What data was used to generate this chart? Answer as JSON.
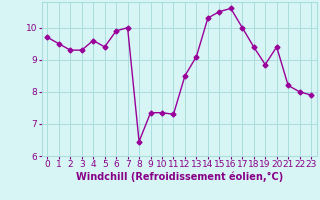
{
  "x": [
    0,
    1,
    2,
    3,
    4,
    5,
    6,
    7,
    8,
    9,
    10,
    11,
    12,
    13,
    14,
    15,
    16,
    17,
    18,
    19,
    20,
    21,
    22,
    23
  ],
  "y": [
    9.7,
    9.5,
    9.3,
    9.3,
    9.6,
    9.4,
    9.9,
    10.0,
    6.45,
    7.35,
    7.35,
    7.3,
    8.5,
    9.1,
    10.3,
    10.5,
    10.6,
    10.0,
    9.4,
    8.85,
    9.4,
    8.2,
    8.0,
    7.9
  ],
  "line_color": "#990099",
  "marker": "D",
  "markersize": 2.5,
  "linewidth": 1.0,
  "bg_color": "#d8f5f5",
  "grid_color": "#aadddd",
  "xlabel": "Windchill (Refroidissement éolien,°C)",
  "xlabel_fontsize": 7,
  "tick_fontsize": 6.5,
  "ylim": [
    6,
    10.8
  ],
  "xlim": [
    -0.5,
    23.5
  ],
  "yticks": [
    6,
    7,
    8,
    9,
    10
  ],
  "xticks": [
    0,
    1,
    2,
    3,
    4,
    5,
    6,
    7,
    8,
    9,
    10,
    11,
    12,
    13,
    14,
    15,
    16,
    17,
    18,
    19,
    20,
    21,
    22,
    23
  ],
  "spine_color": "#aadddd",
  "text_color": "#880088"
}
